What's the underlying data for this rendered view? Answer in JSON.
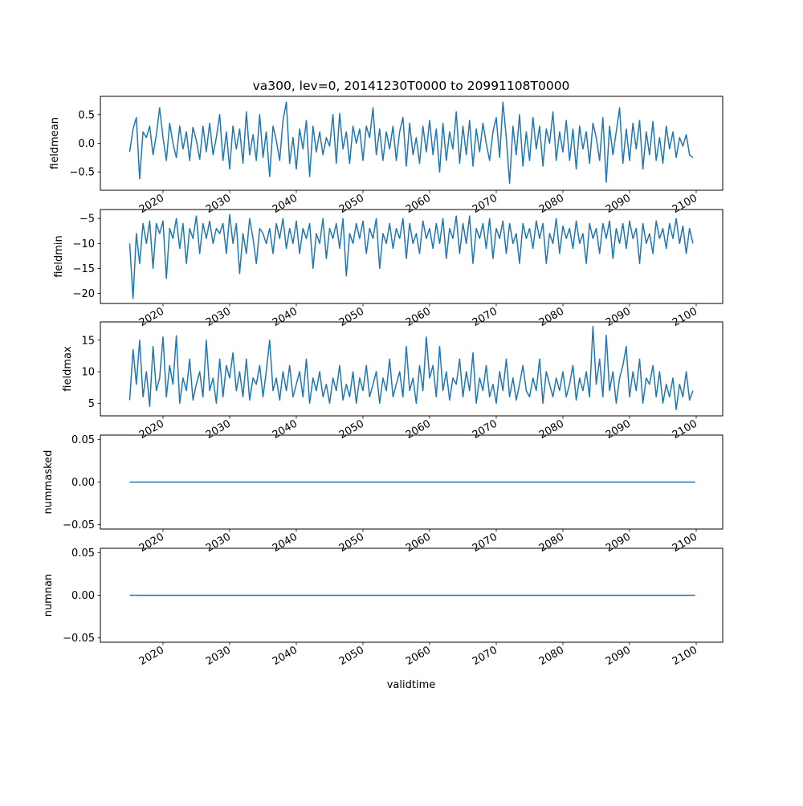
{
  "chart_data": {
    "type": "line",
    "title": "va300, lev=0, 20141230T0000 to 20991108T0000",
    "xlabel": "validtime",
    "x_start": 2015.0,
    "x_step": 0.5,
    "xlim": [
      2011.0,
      2104.0
    ],
    "xticks": [
      2020,
      2030,
      2040,
      2050,
      2060,
      2070,
      2080,
      2090,
      2100
    ],
    "xtick_labels": [
      "2020",
      "2030",
      "2040",
      "2050",
      "2060",
      "2070",
      "2080",
      "2090",
      "2100"
    ],
    "line_color": "#1f77b4",
    "grid": false,
    "panels": [
      {
        "ylabel": "fieldmean",
        "ylim": [
          -0.82,
          0.82
        ],
        "yticks": [
          0.5,
          0.0,
          -0.5
        ],
        "ytick_labels": [
          "0.5",
          "0.0",
          "−0.5"
        ],
        "values": [
          -0.15,
          0.25,
          0.45,
          -0.62,
          0.2,
          0.1,
          0.3,
          -0.2,
          0.15,
          0.62,
          0.1,
          -0.3,
          0.35,
          0.0,
          -0.25,
          0.3,
          -0.1,
          0.2,
          -0.3,
          0.28,
          0.05,
          -0.28,
          0.3,
          -0.15,
          0.35,
          -0.2,
          0.1,
          0.5,
          -0.3,
          0.2,
          -0.45,
          0.3,
          -0.1,
          0.25,
          -0.35,
          0.55,
          -0.2,
          0.15,
          -0.3,
          0.5,
          -0.25,
          0.2,
          -0.58,
          0.3,
          0.05,
          -0.3,
          0.4,
          0.72,
          -0.35,
          0.1,
          -0.45,
          0.25,
          -0.1,
          0.4,
          -0.58,
          0.3,
          -0.15,
          0.2,
          -0.2,
          0.1,
          -0.05,
          0.5,
          -0.35,
          0.52,
          -0.1,
          0.2,
          -0.35,
          0.3,
          0.0,
          0.25,
          -0.3,
          0.3,
          0.1,
          0.62,
          -0.2,
          0.25,
          -0.3,
          0.2,
          -0.1,
          0.3,
          -0.3,
          0.2,
          0.45,
          -0.4,
          0.35,
          -0.2,
          0.1,
          -0.35,
          0.3,
          -0.15,
          0.4,
          -0.2,
          0.25,
          -0.5,
          0.35,
          -0.3,
          0.2,
          -0.1,
          0.55,
          -0.35,
          0.3,
          -0.2,
          0.4,
          -0.4,
          0.25,
          -0.15,
          0.35,
          0.0,
          -0.3,
          0.2,
          0.45,
          -0.25,
          0.72,
          0.1,
          -0.7,
          0.3,
          -0.2,
          0.5,
          -0.4,
          0.2,
          -0.3,
          0.45,
          -0.1,
          0.3,
          -0.4,
          0.25,
          0.0,
          0.55,
          -0.3,
          0.2,
          -0.15,
          0.4,
          -0.3,
          0.25,
          -0.45,
          0.3,
          -0.1,
          0.2,
          -0.35,
          0.35,
          0.1,
          -0.3,
          0.45,
          -0.68,
          0.3,
          -0.2,
          0.2,
          0.62,
          -0.35,
          0.25,
          -0.3,
          0.35,
          -0.1,
          0.4,
          -0.45,
          0.2,
          -0.2,
          0.38,
          -0.3,
          0.1,
          -0.35,
          0.3,
          -0.1,
          0.2,
          -0.25,
          0.1,
          -0.05,
          0.15,
          -0.2,
          -0.25
        ]
      },
      {
        "ylabel": "fieldmin",
        "ylim": [
          -22.0,
          -3.2
        ],
        "yticks": [
          -5,
          -10,
          -15,
          -20
        ],
        "ytick_labels": [
          "−5",
          "−10",
          "−15",
          "−20"
        ],
        "values": [
          -10,
          -21,
          -8,
          -14,
          -6,
          -10,
          -5.5,
          -15,
          -6,
          -8,
          -5.5,
          -17,
          -7,
          -9,
          -5,
          -11,
          -6,
          -14,
          -7,
          -9,
          -4.5,
          -12,
          -6,
          -9,
          -5.5,
          -10,
          -7,
          -8,
          -6,
          -12,
          -4.2,
          -10,
          -6,
          -16,
          -8,
          -12,
          -5,
          -9,
          -14,
          -7,
          -8,
          -10,
          -7,
          -12,
          -6,
          -9,
          -5,
          -11,
          -7,
          -10,
          -5.5,
          -12,
          -7,
          -9,
          -6,
          -15,
          -8,
          -10,
          -5,
          -13,
          -7,
          -9,
          -6,
          -11,
          -5,
          -16.5,
          -8,
          -10,
          -6,
          -9,
          -5.5,
          -12,
          -7,
          -9,
          -5,
          -15,
          -8,
          -10,
          -6,
          -11,
          -7,
          -9,
          -5,
          -13,
          -6,
          -10,
          -8,
          -12,
          -5.5,
          -9,
          -7,
          -11,
          -6,
          -10,
          -5,
          -13,
          -7,
          -9,
          -4.5,
          -12,
          -6,
          -10,
          -4.5,
          -14,
          -7,
          -9,
          -6,
          -11,
          -5,
          -13,
          -7,
          -9,
          -5.5,
          -12,
          -6,
          -10,
          -8,
          -14,
          -6,
          -9,
          -7,
          -11,
          -5.5,
          -9,
          -6,
          -14,
          -8,
          -10,
          -5,
          -12,
          -6.5,
          -9,
          -7,
          -11,
          -5.5,
          -10,
          -8,
          -14,
          -6,
          -9,
          -7,
          -12,
          -6,
          -9,
          -5.5,
          -13,
          -7,
          -10,
          -6,
          -11,
          -5.5,
          -9,
          -7,
          -14,
          -6,
          -10,
          -8,
          -12,
          -5.5,
          -9,
          -7,
          -11,
          -6,
          -9,
          -5,
          -10,
          -6.5,
          -12,
          -7,
          -10
        ]
      },
      {
        "ylabel": "fieldmax",
        "ylim": [
          3.0,
          17.9
        ],
        "yticks": [
          15,
          10,
          5
        ],
        "ytick_labels": [
          "15",
          "10",
          "5"
        ],
        "values": [
          5.5,
          13.5,
          8,
          15,
          6,
          10,
          4.5,
          14,
          7,
          9,
          15.5,
          6,
          11,
          8,
          15.7,
          5,
          9,
          7,
          12,
          5.5,
          8,
          10,
          6,
          15,
          7,
          9,
          5,
          12,
          6,
          11,
          9,
          13,
          7,
          10,
          6,
          12,
          5.5,
          9,
          8,
          11,
          6,
          10,
          15,
          7,
          9,
          5.5,
          10,
          7,
          11,
          6,
          8,
          10,
          6,
          12,
          5,
          9,
          7,
          10,
          6,
          8,
          5,
          9,
          7,
          11,
          5.5,
          8,
          6,
          10,
          5,
          9,
          7,
          11,
          6,
          8,
          10,
          5,
          9,
          7,
          12,
          6,
          8,
          10,
          6,
          14,
          7,
          9,
          5,
          11,
          7,
          15.5,
          9,
          11,
          6,
          14,
          7,
          10,
          5.5,
          9,
          8,
          12,
          6,
          10,
          7,
          13,
          5,
          9,
          7,
          11,
          6,
          8,
          5,
          10,
          7,
          12,
          6,
          9,
          5.5,
          8,
          11,
          7,
          6,
          9,
          7,
          12,
          5,
          10,
          8,
          6,
          9,
          7,
          10,
          6,
          8,
          11,
          5.5,
          9,
          7,
          10,
          6,
          17.2,
          8,
          12,
          6,
          15.8,
          7,
          10,
          5,
          9,
          11,
          14,
          6,
          10,
          7,
          12,
          5,
          9,
          8,
          11,
          6,
          10,
          5,
          8,
          6,
          9,
          4,
          8,
          6,
          10,
          5.5,
          7
        ]
      },
      {
        "ylabel": "nummasked",
        "ylim": [
          -0.055,
          0.055
        ],
        "yticks": [
          0.05,
          0.0,
          -0.05
        ],
        "ytick_labels": [
          "0.05",
          "0.00",
          "−0.05"
        ],
        "constant": 0.0
      },
      {
        "ylabel": "numnan",
        "ylim": [
          -0.055,
          0.055
        ],
        "yticks": [
          0.05,
          0.0,
          -0.05
        ],
        "ytick_labels": [
          "0.05",
          "0.00",
          "−0.05"
        ],
        "constant": 0.0
      }
    ]
  }
}
